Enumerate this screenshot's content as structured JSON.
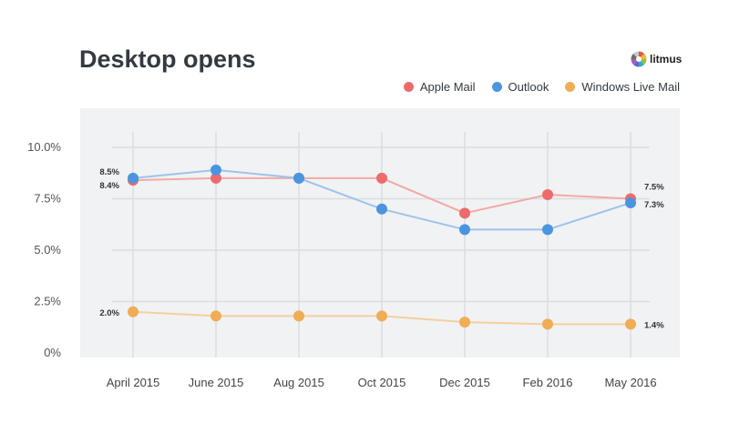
{
  "logo": {
    "text": "litmus"
  },
  "chart_data": {
    "type": "line",
    "title": "Desktop opens",
    "categories": [
      "April 2015",
      "June 2015",
      "Aug 2015",
      "Oct 2015",
      "Dec 2015",
      "Feb 2016",
      "May 2016"
    ],
    "yticks": [
      "0%",
      "2.5%",
      "5.0%",
      "7.5%",
      "10.0%"
    ],
    "ytick_values": [
      0,
      2.5,
      5,
      7.5,
      10
    ],
    "ylim": [
      0,
      10
    ],
    "grid": true,
    "legend_position": "top-right",
    "series": [
      {
        "name": "Apple Mail",
        "color": "#ee6b6b",
        "line_color": "#f2aaa5",
        "values": [
          8.4,
          8.5,
          8.5,
          8.5,
          6.8,
          7.7,
          7.5
        ],
        "start_label": "8.4%",
        "end_label": "7.5%"
      },
      {
        "name": "Outlook",
        "color": "#4b95e0",
        "line_color": "#9ec3ec",
        "values": [
          8.5,
          8.9,
          8.5,
          7.0,
          6.0,
          6.0,
          7.3
        ],
        "start_label": "8.5%",
        "end_label": "7.3%"
      },
      {
        "name": "Windows Live Mail",
        "color": "#f0ad55",
        "line_color": "#f3d09e",
        "values": [
          2.0,
          1.8,
          1.8,
          1.8,
          1.5,
          1.4,
          1.4
        ],
        "start_label": "2.0%",
        "end_label": "1.4%"
      }
    ]
  }
}
